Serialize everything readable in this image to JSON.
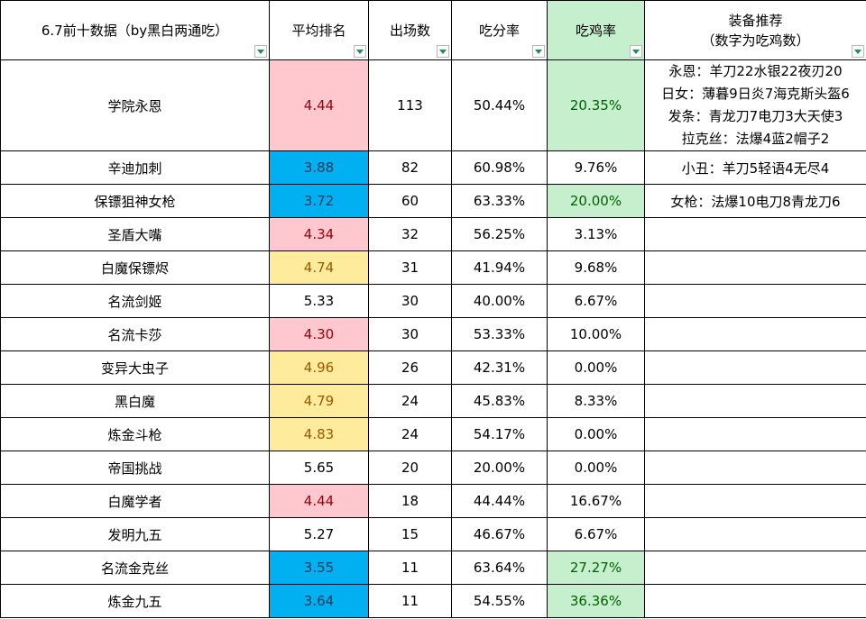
{
  "headers": {
    "name": "6.7前十数据（by黑白两通吃）",
    "avg_rank": "平均排名",
    "games": "出场数",
    "eat_rate": "吃分率",
    "win_rate": "吃鸡率",
    "equip_title": "装备推荐",
    "equip_subtitle": "（数字为吃鸡数）"
  },
  "colors": {
    "pink": "#ffc7ce",
    "blue": "#00b0f0",
    "yellow": "#ffeb9c",
    "green": "#c6efce"
  },
  "rows": [
    {
      "name": "学院永恩",
      "avg_rank": "4.44",
      "games": "113",
      "eat_rate": "50.44%",
      "win_rate": "20.35%"
    },
    {
      "name": "辛迪加刺",
      "avg_rank": "3.88",
      "games": "82",
      "eat_rate": "60.98%",
      "win_rate": "9.76%"
    },
    {
      "name": "保镖狙神女枪",
      "avg_rank": "3.72",
      "games": "60",
      "eat_rate": "63.33%",
      "win_rate": "20.00%"
    },
    {
      "name": "圣盾大嘴",
      "avg_rank": "4.34",
      "games": "32",
      "eat_rate": "56.25%",
      "win_rate": "3.13%"
    },
    {
      "name": "白魔保镖烬",
      "avg_rank": "4.74",
      "games": "31",
      "eat_rate": "41.94%",
      "win_rate": "9.68%"
    },
    {
      "name": "名流剑姬",
      "avg_rank": "5.33",
      "games": "30",
      "eat_rate": "40.00%",
      "win_rate": "6.67%"
    },
    {
      "name": "名流卡莎",
      "avg_rank": "4.30",
      "games": "30",
      "eat_rate": "53.33%",
      "win_rate": "10.00%"
    },
    {
      "name": "变异大虫子",
      "avg_rank": "4.96",
      "games": "26",
      "eat_rate": "42.31%",
      "win_rate": "0.00%"
    },
    {
      "name": "黑白魔",
      "avg_rank": "4.79",
      "games": "24",
      "eat_rate": "45.83%",
      "win_rate": "8.33%"
    },
    {
      "name": "炼金斗枪",
      "avg_rank": "4.83",
      "games": "24",
      "eat_rate": "54.17%",
      "win_rate": "0.00%"
    },
    {
      "name": "帝国挑战",
      "avg_rank": "5.65",
      "games": "20",
      "eat_rate": "20.00%",
      "win_rate": "0.00%"
    },
    {
      "name": "白魔学者",
      "avg_rank": "4.44",
      "games": "18",
      "eat_rate": "44.44%",
      "win_rate": "16.67%"
    },
    {
      "name": "发明九五",
      "avg_rank": "5.27",
      "games": "15",
      "eat_rate": "46.67%",
      "win_rate": "6.67%"
    },
    {
      "name": "名流金克丝",
      "avg_rank": "3.55",
      "games": "11",
      "eat_rate": "63.64%",
      "win_rate": "27.27%"
    },
    {
      "name": "炼金九五",
      "avg_rank": "3.64",
      "games": "11",
      "eat_rate": "54.55%",
      "win_rate": "36.36%"
    }
  ],
  "equip": {
    "row1": [
      "永恩：羊刀22水银22夜刃20",
      "日女：薄暮9日炎7海克斯头盔6",
      "发条：青龙刀7电刀3大天使3",
      "拉克丝：法爆4蓝2帽子2"
    ],
    "row2": "小丑：羊刀5轻语4无尽4",
    "row3": "女枪：法爆10电刀8青龙刀6"
  }
}
